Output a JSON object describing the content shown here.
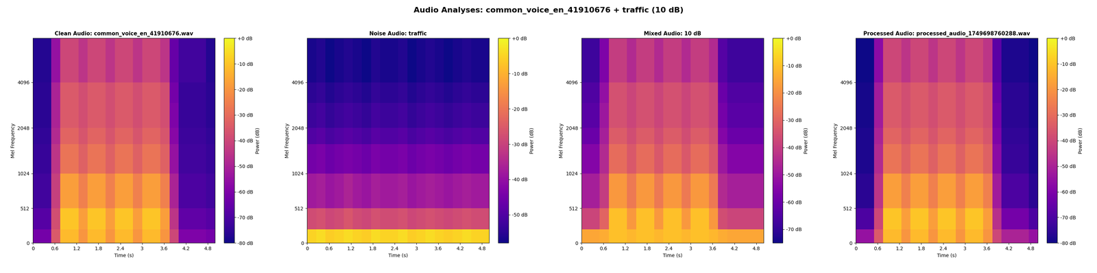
{
  "title": "Audio Analyses: common_voice_en_41910676 + traffic (10 dB)",
  "chart_data": [
    {
      "type": "heatmap",
      "title": "Clean Audio: common_voice_en_41910676.wav",
      "x_label": "Time (s)",
      "y_label": "Mel Frequency",
      "color": "plasma",
      "x": [
        0,
        0.25,
        0.5,
        0.75,
        1,
        1.25,
        1.5,
        1.75,
        2,
        2.25,
        2.5,
        2.75,
        3,
        3.25,
        3.5,
        3.75,
        4,
        4.25,
        4.5,
        4.75,
        5
      ],
      "y": [
        0,
        200,
        512,
        1024,
        1600,
        2048,
        3000,
        4096,
        8000
      ],
      "xlim": [
        0,
        5
      ],
      "xticks": [
        0,
        0.6,
        1.2,
        1.8,
        2.4,
        3,
        3.6,
        4.2,
        4.8
      ],
      "ylim": [
        0,
        8000
      ],
      "yticks": [
        0,
        512,
        1024,
        2048,
        4096
      ],
      "cells": [
        [
          -62,
          -62,
          -35,
          -12,
          -12,
          -20,
          -12,
          -12,
          -20,
          -12,
          -12,
          -20,
          -12,
          -12,
          -20,
          -40,
          -60,
          -60,
          -60,
          -62
        ],
        [
          -68,
          -68,
          -38,
          -10,
          -10,
          -18,
          -10,
          -10,
          -18,
          -10,
          -10,
          -18,
          -10,
          -10,
          -18,
          -45,
          -66,
          -66,
          -66,
          -68
        ],
        [
          -72,
          -72,
          -42,
          -18,
          -18,
          -25,
          -18,
          -18,
          -25,
          -18,
          -18,
          -25,
          -18,
          -18,
          -25,
          -50,
          -70,
          -70,
          -70,
          -72
        ],
        [
          -74,
          -74,
          -45,
          -28,
          -28,
          -33,
          -28,
          -28,
          -33,
          -28,
          -28,
          -33,
          -28,
          -28,
          -33,
          -55,
          -72,
          -72,
          -72,
          -74
        ],
        [
          -75,
          -75,
          -48,
          -32,
          -32,
          -36,
          -32,
          -32,
          -36,
          -32,
          -32,
          -36,
          -32,
          -32,
          -36,
          -58,
          -73,
          -73,
          -73,
          -75
        ],
        [
          -76,
          -76,
          -50,
          -35,
          -35,
          -38,
          -35,
          -35,
          -38,
          -35,
          -35,
          -38,
          -35,
          -35,
          -38,
          -60,
          -74,
          -74,
          -74,
          -76
        ],
        [
          -76,
          -76,
          -50,
          -35,
          -35,
          -38,
          -35,
          -35,
          -38,
          -35,
          -35,
          -38,
          -35,
          -35,
          -38,
          -62,
          -74,
          -74,
          -74,
          -76
        ],
        [
          -77,
          -77,
          -55,
          -40,
          -40,
          -45,
          -40,
          -40,
          -45,
          -40,
          -40,
          -45,
          -40,
          -40,
          -45,
          -65,
          -72,
          -72,
          -72,
          -77
        ]
      ],
      "colorbar": {
        "label": "Power (dB)",
        "range": [
          -80,
          0
        ],
        "ticks": [
          {
            "value": 0,
            "label": "+0 dB"
          },
          {
            "value": -10,
            "label": "-10 dB"
          },
          {
            "value": -20,
            "label": "-20 dB"
          },
          {
            "value": -30,
            "label": "-30 dB"
          },
          {
            "value": -40,
            "label": "-40 dB"
          },
          {
            "value": -50,
            "label": "-50 dB"
          },
          {
            "value": -60,
            "label": "-60 dB"
          },
          {
            "value": -70,
            "label": "-70 dB"
          },
          {
            "value": -80,
            "label": "-80 dB"
          }
        ]
      }
    },
    {
      "type": "heatmap",
      "title": "Noise Audio: traffic",
      "x_label": "Time (s)",
      "y_label": "Mel Frequency",
      "color": "plasma",
      "x": [
        0,
        0.25,
        0.5,
        0.75,
        1,
        1.25,
        1.5,
        1.75,
        2,
        2.25,
        2.5,
        2.75,
        3,
        3.25,
        3.5,
        3.75,
        4,
        4.25,
        4.5,
        4.75,
        5
      ],
      "y": [
        0,
        200,
        512,
        1024,
        1600,
        2048,
        3000,
        4096,
        8000
      ],
      "xlim": [
        0,
        5
      ],
      "xticks": [
        0,
        0.6,
        1.2,
        1.8,
        2.4,
        3,
        3.6,
        4.2,
        4.8
      ],
      "ylim": [
        0,
        8000
      ],
      "yticks": [
        0,
        512,
        1024,
        2048,
        4096
      ],
      "cells": [
        [
          -5,
          -4,
          -6,
          -5,
          -4,
          -5,
          -6,
          -4,
          -5,
          -5,
          -4,
          -6,
          -5,
          -4,
          -5,
          -6,
          -5,
          -4,
          -5,
          -5
        ],
        [
          -28,
          -27,
          -29,
          -28,
          -26,
          -28,
          -29,
          -27,
          -28,
          -28,
          -27,
          -29,
          -28,
          -27,
          -28,
          -29,
          -28,
          -27,
          -28,
          -28
        ],
        [
          -38,
          -37,
          -39,
          -38,
          -36,
          -38,
          -39,
          -37,
          -38,
          -38,
          -37,
          -39,
          -38,
          -37,
          -38,
          -39,
          -38,
          -37,
          -38,
          -38
        ],
        [
          -45,
          -44,
          -46,
          -45,
          -44,
          -45,
          -46,
          -44,
          -45,
          -45,
          -44,
          -46,
          -45,
          -44,
          -45,
          -46,
          -45,
          -44,
          -45,
          -45
        ],
        [
          -50,
          -49,
          -51,
          -50,
          -49,
          -50,
          -51,
          -49,
          -50,
          -50,
          -49,
          -51,
          -50,
          -49,
          -50,
          -51,
          -50,
          -49,
          -50,
          -50
        ],
        [
          -53,
          -52,
          -54,
          -53,
          -52,
          -53,
          -54,
          -52,
          -53,
          -53,
          -52,
          -54,
          -53,
          -52,
          -53,
          -54,
          -53,
          -52,
          -53,
          -53
        ],
        [
          -55,
          -54,
          -56,
          -55,
          -54,
          -55,
          -56,
          -54,
          -55,
          -55,
          -54,
          -56,
          -55,
          -54,
          -55,
          -56,
          -55,
          -54,
          -55,
          -55
        ],
        [
          -57,
          -56,
          -58,
          -57,
          -56,
          -57,
          -58,
          -56,
          -57,
          -57,
          -56,
          -58,
          -57,
          -56,
          -57,
          -58,
          -57,
          -56,
          -57,
          -57
        ]
      ],
      "colorbar": {
        "label": "Power (dB)",
        "range": [
          -58,
          0
        ],
        "ticks": [
          {
            "value": 0,
            "label": "+0 dB"
          },
          {
            "value": -10,
            "label": "-10 dB"
          },
          {
            "value": -20,
            "label": "-20 dB"
          },
          {
            "value": -30,
            "label": "-30 dB"
          },
          {
            "value": -40,
            "label": "-40 dB"
          },
          {
            "value": -50,
            "label": "-50 dB"
          }
        ]
      }
    },
    {
      "type": "heatmap",
      "title": "Mixed Audio: 10 dB",
      "x_label": "Time (s)",
      "y_label": "Mel Frequency",
      "color": "plasma",
      "x": [
        0,
        0.25,
        0.5,
        0.75,
        1,
        1.25,
        1.5,
        1.75,
        2,
        2.25,
        2.5,
        2.75,
        3,
        3.25,
        3.5,
        3.75,
        4,
        4.25,
        4.5,
        4.75,
        5
      ],
      "y": [
        0,
        200,
        512,
        1024,
        1600,
        2048,
        3000,
        4096,
        8000
      ],
      "xlim": [
        0,
        5
      ],
      "xticks": [
        0,
        0.6,
        1.2,
        1.8,
        2.4,
        3,
        3.6,
        4.2,
        4.8
      ],
      "ylim": [
        0,
        8000
      ],
      "yticks": [
        0,
        512,
        1024,
        2048,
        4096
      ],
      "cells": [
        [
          -15,
          -15,
          -14,
          -10,
          -10,
          -12,
          -10,
          -10,
          -12,
          -10,
          -10,
          -12,
          -10,
          -10,
          -12,
          -14,
          -15,
          -15,
          -15,
          -15
        ],
        [
          -38,
          -38,
          -30,
          -10,
          -10,
          -18,
          -10,
          -10,
          -18,
          -10,
          -10,
          -18,
          -10,
          -10,
          -18,
          -36,
          -38,
          -38,
          -38,
          -38
        ],
        [
          -48,
          -48,
          -40,
          -18,
          -18,
          -25,
          -18,
          -18,
          -25,
          -18,
          -18,
          -25,
          -18,
          -18,
          -25,
          -45,
          -48,
          -48,
          -48,
          -48
        ],
        [
          -55,
          -55,
          -45,
          -28,
          -28,
          -33,
          -28,
          -28,
          -33,
          -28,
          -28,
          -33,
          -28,
          -28,
          -33,
          -50,
          -55,
          -55,
          -55,
          -55
        ],
        [
          -60,
          -60,
          -48,
          -32,
          -32,
          -36,
          -32,
          -32,
          -36,
          -32,
          -32,
          -36,
          -32,
          -32,
          -36,
          -55,
          -60,
          -60,
          -60,
          -60
        ],
        [
          -63,
          -63,
          -50,
          -35,
          -35,
          -38,
          -35,
          -35,
          -38,
          -35,
          -35,
          -38,
          -35,
          -35,
          -38,
          -58,
          -63,
          -63,
          -63,
          -63
        ],
        [
          -65,
          -65,
          -52,
          -35,
          -35,
          -38,
          -35,
          -35,
          -38,
          -35,
          -35,
          -38,
          -35,
          -35,
          -38,
          -60,
          -65,
          -65,
          -65,
          -65
        ],
        [
          -68,
          -68,
          -56,
          -40,
          -40,
          -45,
          -40,
          -40,
          -45,
          -40,
          -40,
          -45,
          -40,
          -40,
          -45,
          -64,
          -68,
          -68,
          -68,
          -68
        ]
      ],
      "colorbar": {
        "label": "Power (dB)",
        "range": [
          -75,
          0
        ],
        "ticks": [
          {
            "value": 0,
            "label": "+0 dB"
          },
          {
            "value": -10,
            "label": "-10 dB"
          },
          {
            "value": -20,
            "label": "-20 dB"
          },
          {
            "value": -30,
            "label": "-30 dB"
          },
          {
            "value": -40,
            "label": "-40 dB"
          },
          {
            "value": -50,
            "label": "-50 dB"
          },
          {
            "value": -60,
            "label": "-60 dB"
          },
          {
            "value": -70,
            "label": "-70 dB"
          }
        ]
      }
    },
    {
      "type": "heatmap",
      "title": "Processed Audio: processed_audio_1749698760288.wav",
      "x_label": "Time (s)",
      "y_label": "Mel Frequency",
      "color": "plasma",
      "x": [
        0,
        0.25,
        0.5,
        0.75,
        1,
        1.25,
        1.5,
        1.75,
        2,
        2.25,
        2.5,
        2.75,
        3,
        3.25,
        3.5,
        3.75,
        4,
        4.25,
        4.5,
        4.75,
        5
      ],
      "y": [
        0,
        200,
        512,
        1024,
        1600,
        2048,
        3000,
        4096,
        8000
      ],
      "xlim": [
        0,
        5
      ],
      "xticks": [
        0,
        0.6,
        1.2,
        1.8,
        2.4,
        3,
        3.6,
        4.2,
        4.8
      ],
      "ylim": [
        0,
        8000
      ],
      "yticks": [
        0,
        512,
        1024,
        2048,
        4096
      ],
      "cells": [
        [
          -55,
          -55,
          -35,
          -12,
          -12,
          -20,
          -12,
          -12,
          -20,
          -12,
          -12,
          -20,
          -12,
          -12,
          -20,
          -40,
          -50,
          -50,
          -50,
          -55
        ],
        [
          -70,
          -70,
          -40,
          -10,
          -10,
          -18,
          -10,
          -10,
          -18,
          -10,
          -10,
          -18,
          -10,
          -10,
          -18,
          -46,
          -62,
          -62,
          -62,
          -70
        ],
        [
          -76,
          -76,
          -45,
          -18,
          -18,
          -25,
          -18,
          -18,
          -25,
          -18,
          -18,
          -25,
          -18,
          -18,
          -25,
          -52,
          -70,
          -70,
          -70,
          -76
        ],
        [
          -78,
          -78,
          -48,
          -28,
          -28,
          -33,
          -28,
          -28,
          -33,
          -28,
          -28,
          -33,
          -28,
          -28,
          -33,
          -57,
          -74,
          -74,
          -74,
          -78
        ],
        [
          -78,
          -78,
          -50,
          -32,
          -32,
          -36,
          -32,
          -32,
          -36,
          -32,
          -32,
          -36,
          -32,
          -32,
          -36,
          -60,
          -75,
          -75,
          -75,
          -78
        ],
        [
          -79,
          -79,
          -52,
          -35,
          -35,
          -38,
          -35,
          -35,
          -38,
          -35,
          -35,
          -38,
          -35,
          -35,
          -38,
          -62,
          -76,
          -76,
          -76,
          -79
        ],
        [
          -79,
          -79,
          -52,
          -35,
          -35,
          -38,
          -35,
          -35,
          -38,
          -35,
          -35,
          -38,
          -35,
          -35,
          -38,
          -64,
          -76,
          -76,
          -76,
          -79
        ],
        [
          -80,
          -80,
          -57,
          -40,
          -40,
          -45,
          -40,
          -40,
          -45,
          -40,
          -40,
          -45,
          -40,
          -40,
          -45,
          -67,
          -78,
          -78,
          -78,
          -80
        ]
      ],
      "colorbar": {
        "label": "Power (dB)",
        "range": [
          -80,
          0
        ],
        "ticks": [
          {
            "value": 0,
            "label": "+0 dB"
          },
          {
            "value": -10,
            "label": "-10 dB"
          },
          {
            "value": -20,
            "label": "-20 dB"
          },
          {
            "value": -30,
            "label": "-30 dB"
          },
          {
            "value": -40,
            "label": "-40 dB"
          },
          {
            "value": -50,
            "label": "-50 dB"
          },
          {
            "value": -60,
            "label": "-60 dB"
          },
          {
            "value": -70,
            "label": "-70 dB"
          },
          {
            "value": -80,
            "label": "-80 dB"
          }
        ]
      }
    }
  ]
}
